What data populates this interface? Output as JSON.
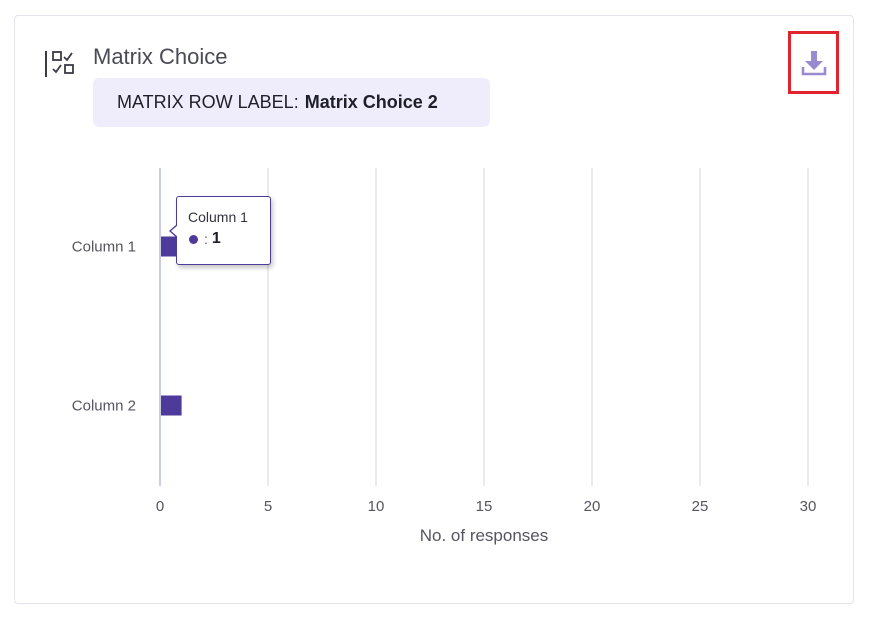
{
  "header": {
    "question_title": "Matrix Choice",
    "row_label_prefix": "MATRIX ROW LABEL:",
    "row_label_value": "Matrix Choice 2"
  },
  "icons": {
    "question_type": "matrix-choice-icon",
    "download": "download-icon"
  },
  "colors": {
    "bar": "#4e3a9b",
    "download_icon": "#9a8ad0",
    "highlight_border": "#e0232d",
    "pill_background": "#efedfb"
  },
  "tooltip": {
    "title": "Column 1",
    "separator": ":",
    "value": "1"
  },
  "chart_data": {
    "type": "bar",
    "orientation": "horizontal",
    "categories": [
      "Column 1",
      "Column 2"
    ],
    "values": [
      1,
      1
    ],
    "xlabel": "No. of responses",
    "ylabel": "",
    "xlim": [
      0,
      30
    ],
    "x_ticks": [
      0,
      5,
      10,
      15,
      20,
      25,
      30
    ],
    "grid": true
  }
}
